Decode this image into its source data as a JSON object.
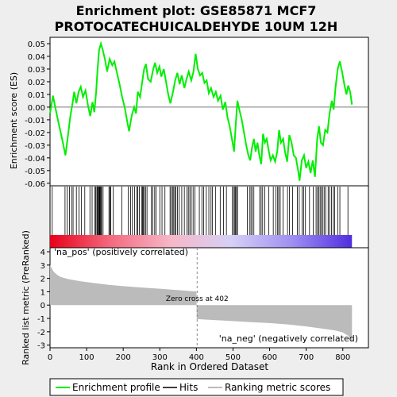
{
  "chart_data": {
    "type": "line",
    "title_line1": "Enrichment plot: GSE85871 MCF7",
    "title_line2": "PROTOCATECHUICALDEHYDE 10UM 12H",
    "top_panel": {
      "ylabel": "Enrichment score (ES)",
      "ylim": [
        -0.062,
        0.055
      ],
      "yticks": [
        -0.06,
        -0.05,
        -0.04,
        -0.03,
        -0.02,
        -0.01,
        0.0,
        0.01,
        0.02,
        0.03,
        0.04,
        0.05
      ],
      "ytick_labels": [
        "-0.06",
        "-0.05",
        "-0.04",
        "-0.03",
        "-0.02",
        "-0.01",
        "0.00",
        "0.01",
        "0.02",
        "0.03",
        "0.04",
        "0.05"
      ],
      "series_color": "#00ee00",
      "es_curve": [
        [
          0,
          -0.005
        ],
        [
          8,
          0.009
        ],
        [
          20,
          -0.008
        ],
        [
          33,
          -0.025
        ],
        [
          42,
          -0.038
        ],
        [
          48,
          -0.025
        ],
        [
          55,
          -0.008
        ],
        [
          62,
          0.004
        ],
        [
          66,
          0.012
        ],
        [
          72,
          0.003
        ],
        [
          78,
          0.012
        ],
        [
          84,
          0.016
        ],
        [
          90,
          0.008
        ],
        [
          97,
          0.013
        ],
        [
          104,
          0.001
        ],
        [
          110,
          -0.007
        ],
        [
          116,
          0.004
        ],
        [
          121,
          -0.004
        ],
        [
          126,
          0.012
        ],
        [
          130,
          0.03
        ],
        [
          134,
          0.045
        ],
        [
          139,
          0.05
        ],
        [
          144,
          0.045
        ],
        [
          150,
          0.038
        ],
        [
          156,
          0.028
        ],
        [
          163,
          0.038
        ],
        [
          170,
          0.033
        ],
        [
          176,
          0.036
        ],
        [
          183,
          0.027
        ],
        [
          190,
          0.018
        ],
        [
          197,
          0.008
        ],
        [
          204,
          0.0
        ],
        [
          212,
          -0.013
        ],
        [
          216,
          -0.019
        ],
        [
          220,
          -0.012
        ],
        [
          224,
          -0.006
        ],
        [
          230,
          0.0
        ],
        [
          235,
          -0.005
        ],
        [
          240,
          0.012
        ],
        [
          246,
          0.008
        ],
        [
          251,
          0.018
        ],
        [
          257,
          0.03
        ],
        [
          262,
          0.034
        ],
        [
          268,
          0.022
        ],
        [
          275,
          0.02
        ],
        [
          282,
          0.03
        ],
        [
          287,
          0.035
        ],
        [
          293,
          0.027
        ],
        [
          299,
          0.032
        ],
        [
          304,
          0.024
        ],
        [
          311,
          0.03
        ],
        [
          317,
          0.02
        ],
        [
          323,
          0.01
        ],
        [
          329,
          0.003
        ],
        [
          336,
          0.012
        ],
        [
          342,
          0.021
        ],
        [
          348,
          0.027
        ],
        [
          354,
          0.018
        ],
        [
          360,
          0.025
        ],
        [
          367,
          0.015
        ],
        [
          373,
          0.022
        ],
        [
          379,
          0.028
        ],
        [
          386,
          0.021
        ],
        [
          392,
          0.028
        ],
        [
          398,
          0.042
        ],
        [
          404,
          0.03
        ],
        [
          410,
          0.025
        ],
        [
          416,
          0.027
        ],
        [
          422,
          0.019
        ],
        [
          428,
          0.021
        ],
        [
          434,
          0.011
        ],
        [
          440,
          0.015
        ],
        [
          447,
          0.008
        ],
        [
          453,
          0.012
        ],
        [
          459,
          0.005
        ],
        [
          466,
          0.009
        ],
        [
          472,
          -0.002
        ],
        [
          479,
          0.004
        ],
        [
          485,
          -0.008
        ],
        [
          491,
          -0.015
        ],
        [
          497,
          -0.025
        ],
        [
          503,
          -0.035
        ],
        [
          508,
          -0.012
        ],
        [
          512,
          0.005
        ],
        [
          518,
          -0.003
        ],
        [
          524,
          -0.01
        ],
        [
          530,
          -0.02
        ],
        [
          536,
          -0.03
        ],
        [
          542,
          -0.038
        ],
        [
          547,
          -0.042
        ],
        [
          552,
          -0.032
        ],
        [
          557,
          -0.025
        ],
        [
          562,
          -0.035
        ],
        [
          567,
          -0.028
        ],
        [
          572,
          -0.038
        ],
        [
          577,
          -0.045
        ],
        [
          582,
          -0.021
        ],
        [
          587,
          -0.028
        ],
        [
          592,
          -0.025
        ],
        [
          598,
          -0.035
        ],
        [
          603,
          -0.042
        ],
        [
          609,
          -0.038
        ],
        [
          615,
          -0.043
        ],
        [
          621,
          -0.035
        ],
        [
          626,
          -0.018
        ],
        [
          631,
          -0.028
        ],
        [
          637,
          -0.025
        ],
        [
          642,
          -0.035
        ],
        [
          648,
          -0.043
        ],
        [
          654,
          -0.022
        ],
        [
          660,
          -0.028
        ],
        [
          666,
          -0.038
        ],
        [
          672,
          -0.04
        ],
        [
          678,
          -0.05
        ],
        [
          682,
          -0.058
        ],
        [
          688,
          -0.042
        ],
        [
          694,
          -0.038
        ],
        [
          700,
          -0.048
        ],
        [
          706,
          -0.043
        ],
        [
          712,
          -0.052
        ],
        [
          718,
          -0.042
        ],
        [
          724,
          -0.055
        ],
        [
          730,
          -0.025
        ],
        [
          735,
          -0.015
        ],
        [
          740,
          -0.028
        ],
        [
          746,
          -0.03
        ],
        [
          752,
          -0.018
        ],
        [
          758,
          -0.02
        ],
        [
          764,
          -0.005
        ],
        [
          770,
          0.005
        ],
        [
          775,
          -0.002
        ],
        [
          780,
          0.015
        ],
        [
          786,
          0.03
        ],
        [
          792,
          0.036
        ],
        [
          798,
          0.028
        ],
        [
          804,
          0.018
        ],
        [
          810,
          0.01
        ],
        [
          815,
          0.017
        ],
        [
          820,
          0.012
        ],
        [
          825,
          0.002
        ]
      ]
    },
    "hits_panel": {
      "hit_ranks": [
        6,
        41,
        47,
        53,
        59,
        63,
        72,
        79,
        86,
        95,
        109,
        115,
        122,
        125,
        128,
        130,
        131,
        133,
        135,
        136,
        137,
        139,
        141,
        145,
        161,
        164,
        166,
        173,
        196,
        214,
        220,
        225,
        231,
        237,
        240,
        244,
        251,
        253,
        255,
        258,
        261,
        265,
        277,
        281,
        286,
        290,
        300,
        306,
        314,
        328,
        331,
        335,
        338,
        341,
        344,
        348,
        353,
        360,
        367,
        374,
        378,
        382,
        386,
        391,
        396,
        408,
        415,
        420,
        427,
        434,
        440,
        444,
        452,
        465,
        474,
        482,
        498,
        502,
        505,
        507,
        510,
        512,
        539,
        545,
        549,
        552,
        557,
        573,
        577,
        581,
        587,
        598,
        610,
        617,
        622,
        625,
        629,
        637,
        649,
        654,
        663,
        676,
        681,
        689,
        693,
        698,
        709,
        719,
        727,
        731,
        734,
        738,
        741,
        745,
        749,
        753,
        760,
        764,
        769,
        774,
        778,
        786,
        792,
        814
      ],
      "gradient_stops": [
        "#e8001a",
        "#f36a7f",
        "#f7b7c8",
        "#d6d0f6",
        "#9f90f2",
        "#4f2ee0"
      ]
    },
    "bottom_panel": {
      "ylabel": "Ranked list metric (PreRanked)",
      "xlabel": "Rank in Ordered Dataset",
      "ylim": [
        -3.2,
        4.3
      ],
      "yticks": [
        -3,
        -2,
        -1,
        0,
        1,
        2,
        3,
        4
      ],
      "ytick_labels": [
        "-3",
        "-2",
        "-1",
        "0",
        "1",
        "2",
        "3",
        "4"
      ],
      "xlim": [
        0,
        870
      ],
      "xticks": [
        0,
        100,
        200,
        300,
        400,
        500,
        600,
        700,
        800
      ],
      "xtick_labels": [
        "0",
        "100",
        "200",
        "300",
        "400",
        "500",
        "600",
        "700",
        "800"
      ],
      "metric_curve": [
        [
          0,
          3.0
        ],
        [
          5,
          2.75
        ],
        [
          10,
          2.5
        ],
        [
          20,
          2.25
        ],
        [
          30,
          2.1
        ],
        [
          50,
          1.95
        ],
        [
          80,
          1.8
        ],
        [
          120,
          1.65
        ],
        [
          160,
          1.52
        ],
        [
          200,
          1.42
        ],
        [
          250,
          1.32
        ],
        [
          300,
          1.23
        ],
        [
          350,
          1.12
        ],
        [
          400,
          1.02
        ],
        [
          401,
          -1.05
        ],
        [
          450,
          -1.12
        ],
        [
          500,
          -1.2
        ],
        [
          550,
          -1.28
        ],
        [
          600,
          -1.35
        ],
        [
          650,
          -1.45
        ],
        [
          700,
          -1.6
        ],
        [
          740,
          -1.75
        ],
        [
          780,
          -1.9
        ],
        [
          800,
          -2.05
        ],
        [
          815,
          -2.3
        ],
        [
          825,
          -2.75
        ]
      ],
      "zero_cross_rank": 402,
      "zero_cross_label": "Zero cross at 402",
      "pos_label": "'na_pos' (positively correlated)",
      "neg_label": "'na_neg' (negatively correlated)",
      "pos_color": "#cc0000",
      "neg_color": "#0000cc"
    },
    "legend": {
      "placement": "bottom",
      "entries": [
        {
          "label": "Enrichment profile",
          "color": "#00ee00"
        },
        {
          "label": "Hits",
          "color": "#000000"
        },
        {
          "label": "Ranking metric scores",
          "color": "#bbbbbb"
        }
      ]
    }
  }
}
